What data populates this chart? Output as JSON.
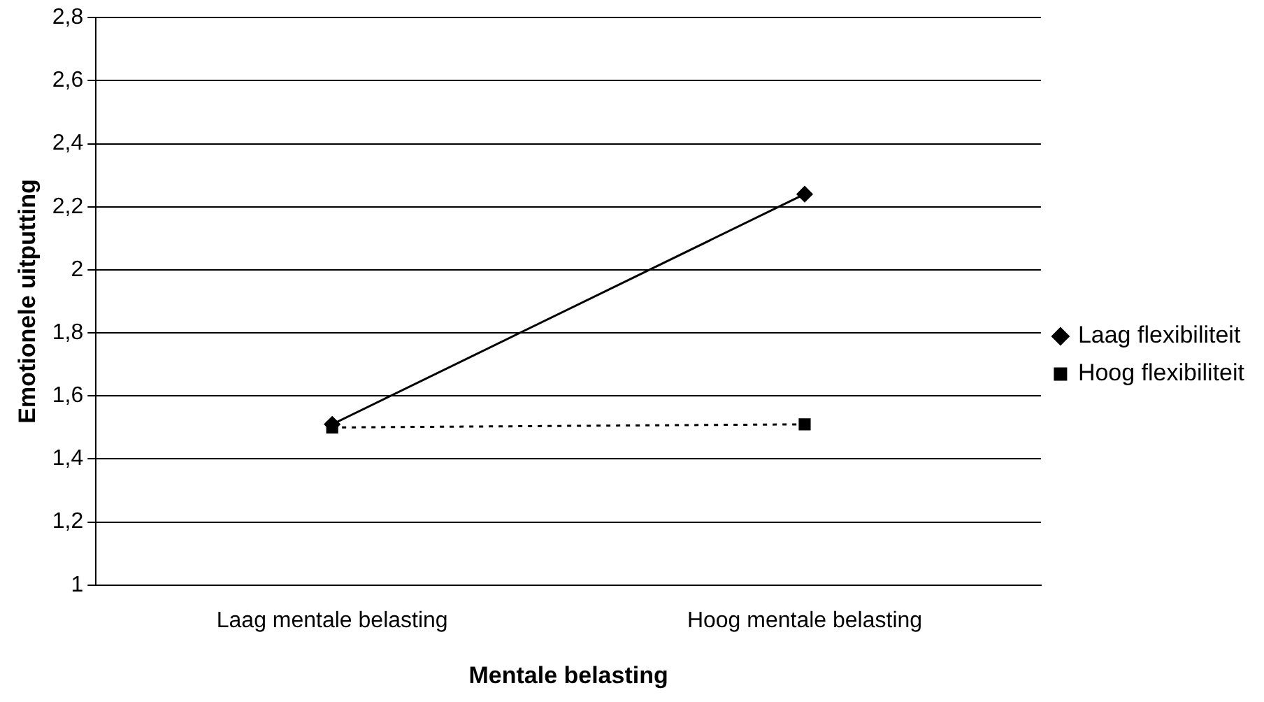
{
  "chart_data": {
    "type": "line",
    "xlabel": "Mentale belasting",
    "ylabel": "Emotionele uitputting",
    "categories": [
      "Laag mentale belasting",
      "Hoog mentale belasting"
    ],
    "series": [
      {
        "name": "Laag flexibiliteit",
        "color": "#000000",
        "values": [
          1.51,
          2.24
        ],
        "marker": "diamond",
        "line_style": "solid"
      },
      {
        "name": "Hoog flexibiliteit",
        "color": "#000000",
        "values": [
          1.5,
          1.51
        ],
        "marker": "square",
        "line_style": "dotted"
      }
    ],
    "ylim": [
      1,
      2.8
    ],
    "yticks": [
      1,
      {
        "value": 1.2,
        "label": "1,2"
      },
      {
        "value": 1.4,
        "label": "1,4"
      },
      {
        "value": 1.6,
        "label": "1,6"
      },
      {
        "value": 1.8,
        "label": "1,8"
      },
      2,
      {
        "value": 2.2,
        "label": "2,2"
      },
      {
        "value": 2.4,
        "label": "2,4"
      },
      {
        "value": 2.6,
        "label": "2,6"
      },
      {
        "value": 2.8,
        "label": "2,8"
      }
    ],
    "grid": "y",
    "legend": "right"
  }
}
